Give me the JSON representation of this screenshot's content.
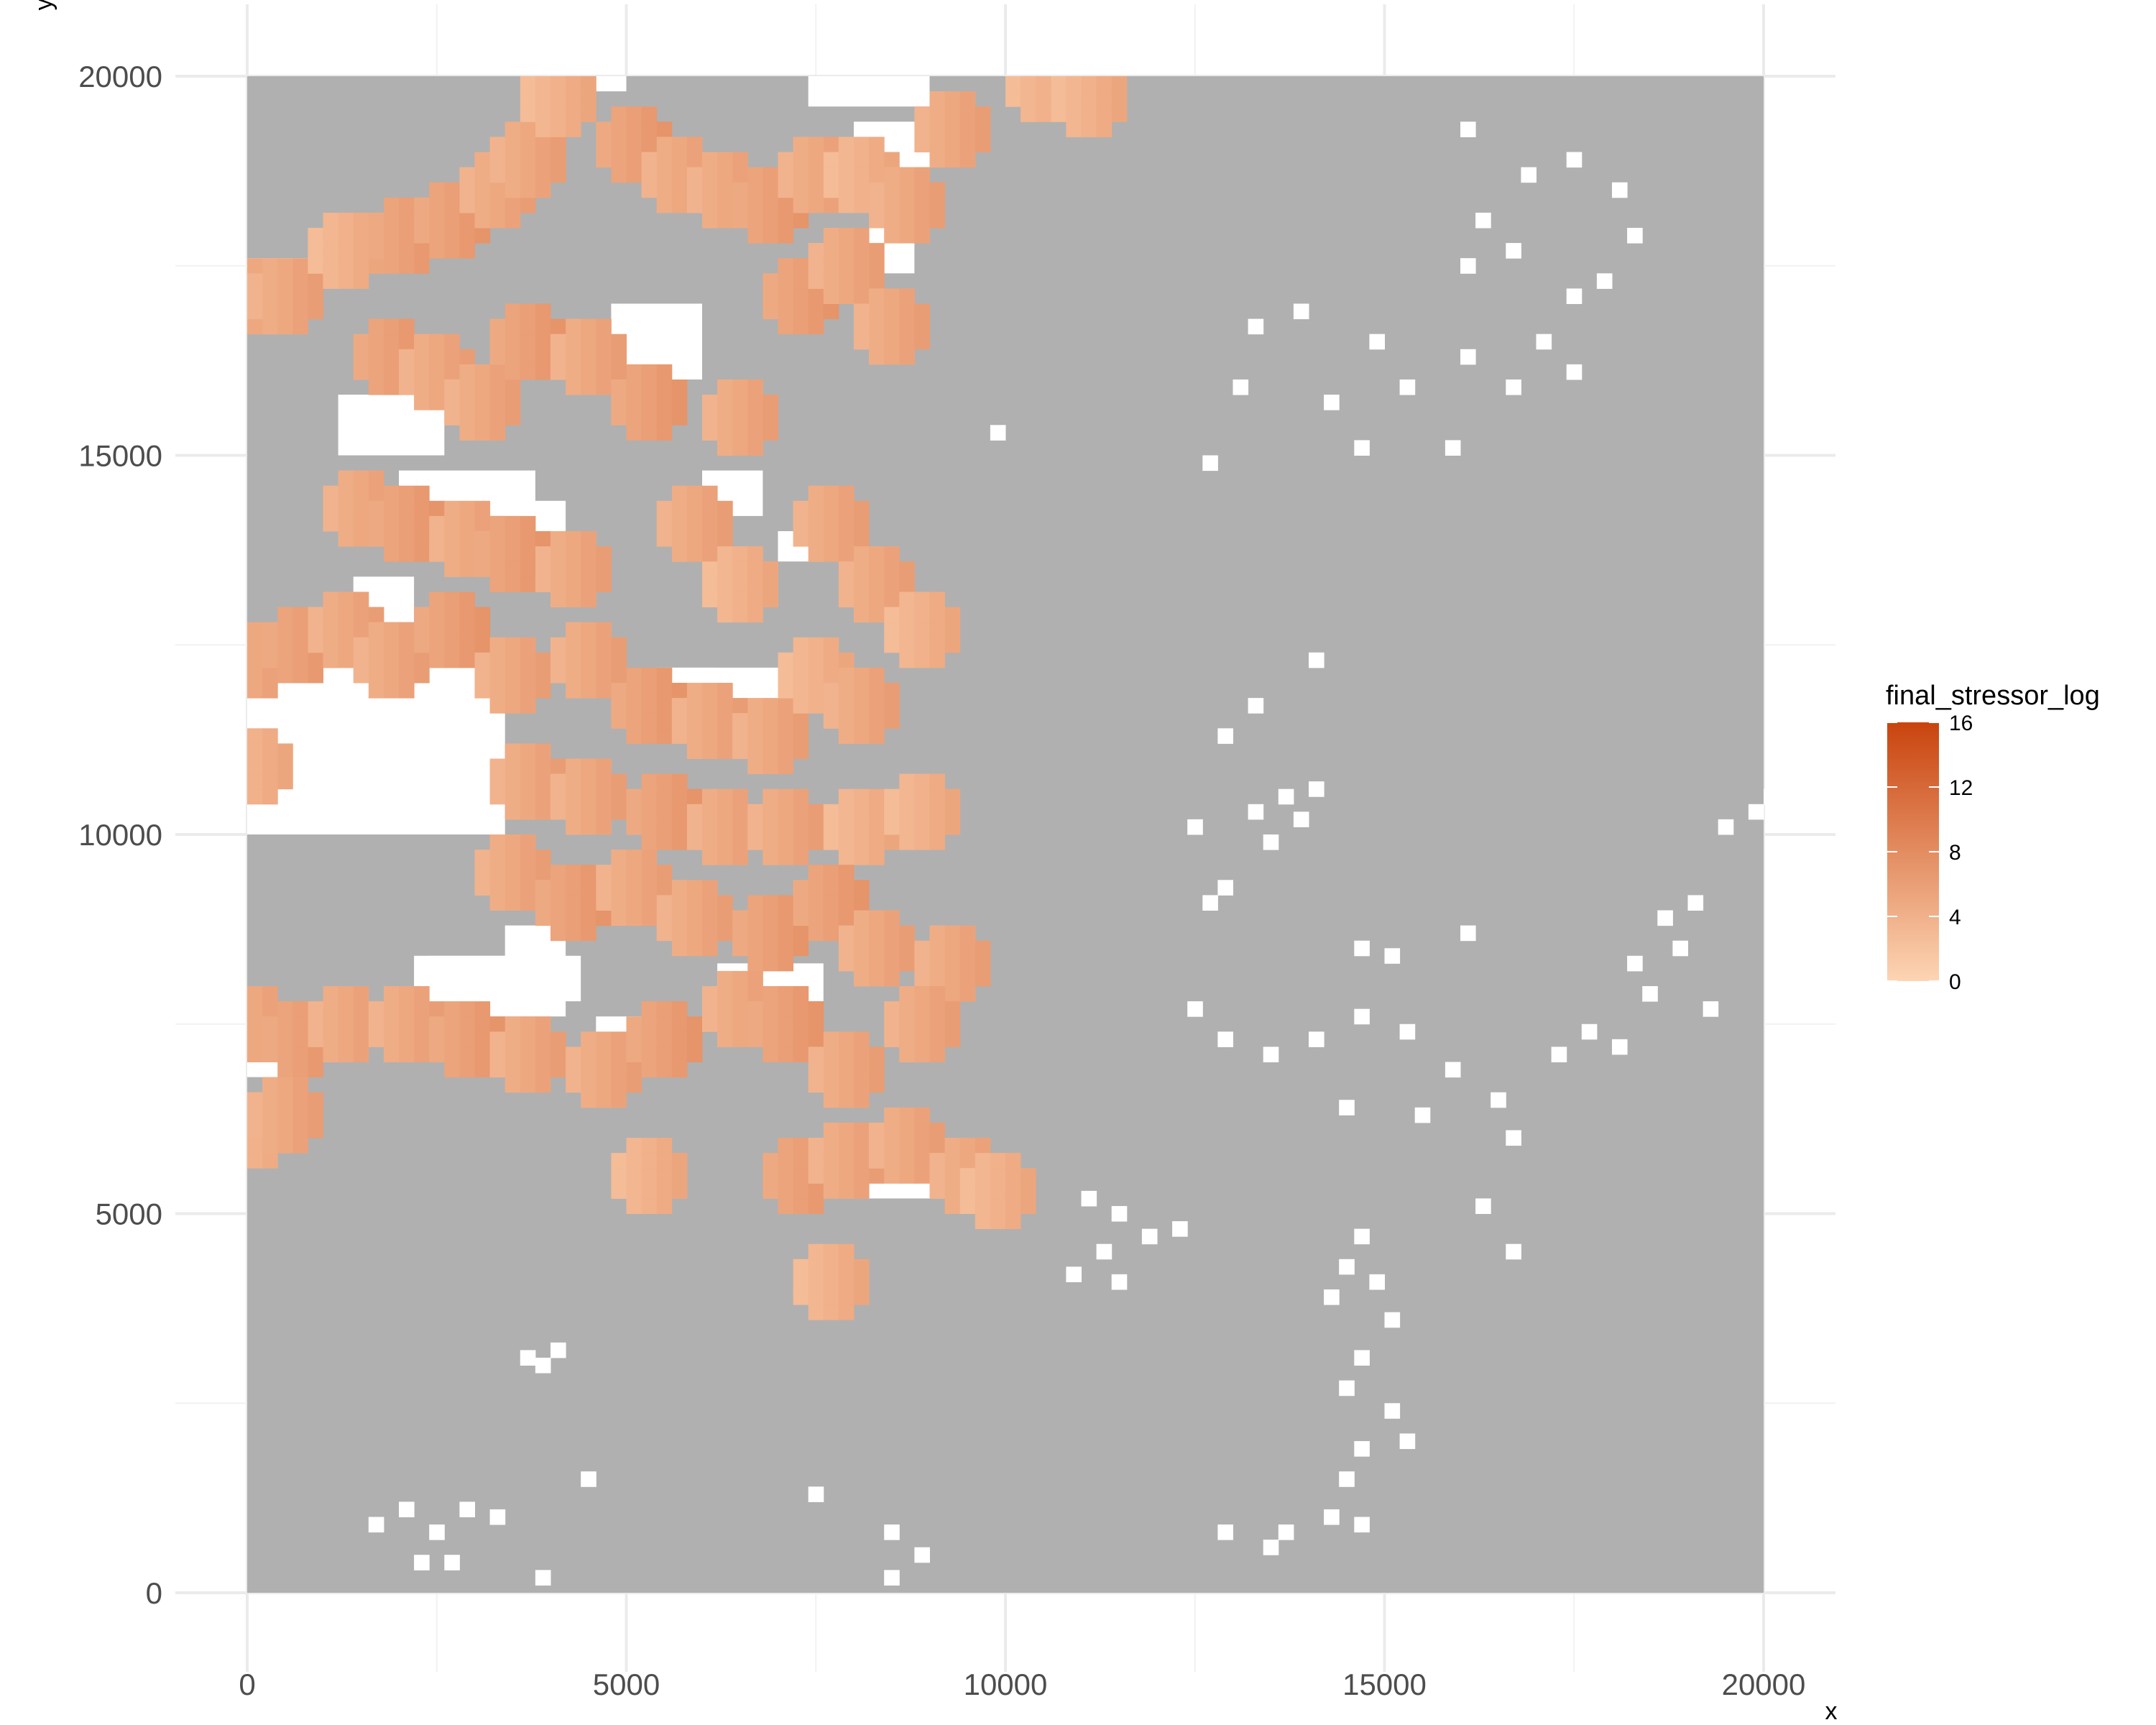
{
  "chart_data": {
    "type": "heatmap",
    "title": "",
    "xlabel": "x",
    "ylabel": "y",
    "xlim": [
      0,
      20000
    ],
    "ylim": [
      0,
      20000
    ],
    "x_ticks": [
      0,
      5000,
      10000,
      15000,
      20000
    ],
    "y_ticks": [
      0,
      5000,
      10000,
      15000,
      20000
    ],
    "x_tick_labels": [
      "0",
      "5000",
      "10000",
      "15000",
      "20000"
    ],
    "y_tick_labels": [
      "0",
      "5000",
      "10000",
      "15000",
      "20000"
    ],
    "grid": true,
    "cell_size": 200,
    "na_color": "#b0b0b0",
    "empty_color": "#ffffff",
    "legend": {
      "title": "final_stressor_log",
      "placement": "right",
      "range": [
        0,
        16
      ],
      "ticks": [
        0,
        4,
        8,
        12,
        16
      ],
      "tick_labels": [
        "0",
        "4",
        "8",
        "12",
        "16"
      ],
      "low_color": "#fdd5b4",
      "high_color": "#c9440e"
    },
    "stressor_region": {
      "description_level": "cells with final_stressor_log approx 3-8 cluster in the western half of the domain",
      "typical_value": 5
    },
    "stressor_cells": [
      [
        0,
        17000,
        5
      ],
      [
        400,
        17000,
        5
      ],
      [
        1200,
        17600,
        4
      ],
      [
        2000,
        17800,
        6
      ],
      [
        2600,
        18000,
        6
      ],
      [
        3200,
        18400,
        5
      ],
      [
        3600,
        18800,
        5
      ],
      [
        4000,
        19600,
        4
      ],
      [
        5000,
        19000,
        6
      ],
      [
        5600,
        18600,
        5
      ],
      [
        6200,
        18400,
        5
      ],
      [
        6800,
        18200,
        6
      ],
      [
        7400,
        18600,
        5
      ],
      [
        8000,
        18600,
        4
      ],
      [
        8600,
        18200,
        5
      ],
      [
        9200,
        19200,
        5
      ],
      [
        10400,
        19800,
        4
      ],
      [
        11000,
        19600,
        4
      ],
      [
        1800,
        16200,
        6
      ],
      [
        2400,
        16000,
        5
      ],
      [
        3000,
        15600,
        5
      ],
      [
        3600,
        16400,
        6
      ],
      [
        4400,
        16200,
        5
      ],
      [
        5200,
        15600,
        6
      ],
      [
        6400,
        15400,
        5
      ],
      [
        7200,
        17000,
        6
      ],
      [
        7800,
        17400,
        5
      ],
      [
        8400,
        16600,
        5
      ],
      [
        1400,
        14200,
        5
      ],
      [
        2000,
        14000,
        6
      ],
      [
        2800,
        13800,
        5
      ],
      [
        3400,
        13600,
        6
      ],
      [
        4200,
        13400,
        5
      ],
      [
        5800,
        14000,
        5
      ],
      [
        6400,
        13200,
        4
      ],
      [
        7600,
        14000,
        5
      ],
      [
        8200,
        13200,
        5
      ],
      [
        8800,
        12600,
        4
      ],
      [
        0,
        12200,
        5
      ],
      [
        600,
        12400,
        6
      ],
      [
        1200,
        12600,
        5
      ],
      [
        1800,
        12200,
        5
      ],
      [
        2600,
        12600,
        6
      ],
      [
        3400,
        12000,
        5
      ],
      [
        4400,
        12200,
        5
      ],
      [
        5200,
        11600,
        6
      ],
      [
        6000,
        11400,
        5
      ],
      [
        6800,
        11200,
        5
      ],
      [
        7400,
        12000,
        4
      ],
      [
        8000,
        11600,
        5
      ],
      [
        0,
        10800,
        4
      ],
      [
        3600,
        10600,
        5
      ],
      [
        4400,
        10400,
        5
      ],
      [
        5400,
        10200,
        6
      ],
      [
        6200,
        10000,
        5
      ],
      [
        7000,
        10000,
        5
      ],
      [
        8000,
        10000,
        4
      ],
      [
        8800,
        10200,
        4
      ],
      [
        3400,
        9400,
        5
      ],
      [
        4200,
        9000,
        6
      ],
      [
        5000,
        9200,
        5
      ],
      [
        5800,
        8800,
        5
      ],
      [
        6800,
        8600,
        6
      ],
      [
        7600,
        9000,
        6
      ],
      [
        8200,
        8400,
        5
      ],
      [
        9200,
        8200,
        5
      ],
      [
        0,
        7400,
        5
      ],
      [
        600,
        7200,
        6
      ],
      [
        1200,
        7400,
        5
      ],
      [
        2000,
        7400,
        5
      ],
      [
        2800,
        7200,
        6
      ],
      [
        3600,
        7000,
        5
      ],
      [
        4600,
        6800,
        5
      ],
      [
        5400,
        7200,
        6
      ],
      [
        6400,
        7600,
        5
      ],
      [
        7000,
        7400,
        6
      ],
      [
        7800,
        6800,
        5
      ],
      [
        8800,
        7400,
        5
      ],
      [
        0,
        6000,
        4
      ],
      [
        400,
        6200,
        5
      ],
      [
        7200,
        5400,
        6
      ],
      [
        7800,
        5600,
        5
      ],
      [
        8600,
        5800,
        5
      ],
      [
        9400,
        5400,
        5
      ],
      [
        9800,
        5200,
        4
      ],
      [
        7600,
        4000,
        4
      ],
      [
        5200,
        5400,
        4
      ]
    ],
    "white_patches": [
      [
        4400,
        19800,
        600,
        200
      ],
      [
        7400,
        19600,
        1600,
        400
      ],
      [
        8000,
        18800,
        1000,
        600
      ],
      [
        8000,
        17400,
        800,
        600
      ],
      [
        4800,
        16000,
        1200,
        1000
      ],
      [
        0,
        17200,
        800,
        400
      ],
      [
        1200,
        15000,
        1400,
        800
      ],
      [
        2000,
        14200,
        1800,
        600
      ],
      [
        1400,
        12800,
        800,
        600
      ],
      [
        0,
        10000,
        3400,
        2200
      ],
      [
        0,
        11800,
        600,
        600
      ],
      [
        2400,
        11800,
        1200,
        400
      ],
      [
        5600,
        11400,
        1800,
        800
      ],
      [
        5400,
        11800,
        800,
        400
      ],
      [
        3400,
        8200,
        800,
        600
      ],
      [
        2200,
        7600,
        2000,
        800
      ],
      [
        4600,
        7000,
        1000,
        600
      ],
      [
        6200,
        7800,
        1400,
        500
      ],
      [
        7400,
        5200,
        1800,
        800
      ],
      [
        0,
        6800,
        600,
        600
      ],
      [
        2400,
        7800,
        2000,
        600
      ],
      [
        6000,
        14200,
        800,
        600
      ],
      [
        7000,
        13600,
        600,
        400
      ],
      [
        3600,
        14000,
        600,
        400
      ],
      [
        3200,
        13400,
        800,
        400
      ]
    ],
    "scattered_white_cells": [
      [
        3600,
        3000
      ],
      [
        3800,
        2900
      ],
      [
        4000,
        3100
      ],
      [
        1600,
        800
      ],
      [
        2000,
        1000
      ],
      [
        2400,
        700
      ],
      [
        2800,
        1000
      ],
      [
        3200,
        900
      ],
      [
        2200,
        300
      ],
      [
        2600,
        300
      ],
      [
        4400,
        1400
      ],
      [
        7400,
        1200
      ],
      [
        8400,
        700
      ],
      [
        8800,
        400
      ],
      [
        3800,
        100
      ],
      [
        8400,
        100
      ],
      [
        12800,
        700
      ],
      [
        13400,
        500
      ],
      [
        13600,
        700
      ],
      [
        14200,
        900
      ],
      [
        14600,
        800
      ],
      [
        14400,
        1400
      ],
      [
        14600,
        1800
      ],
      [
        15200,
        1900
      ],
      [
        15000,
        2300
      ],
      [
        14400,
        2600
      ],
      [
        14600,
        3000
      ],
      [
        14200,
        3800
      ],
      [
        14400,
        4200
      ],
      [
        14600,
        4600
      ],
      [
        15000,
        3500
      ],
      [
        14800,
        4000
      ],
      [
        11000,
        5100
      ],
      [
        11400,
        4900
      ],
      [
        11800,
        4600
      ],
      [
        12200,
        4700
      ],
      [
        11200,
        4400
      ],
      [
        10800,
        4100
      ],
      [
        11400,
        4000
      ],
      [
        12400,
        10000
      ],
      [
        12600,
        9000
      ],
      [
        12800,
        9200
      ],
      [
        13200,
        10200
      ],
      [
        13600,
        10400
      ],
      [
        13800,
        10100
      ],
      [
        14000,
        10500
      ],
      [
        13400,
        9800
      ],
      [
        12400,
        7600
      ],
      [
        12800,
        7200
      ],
      [
        13400,
        7000
      ],
      [
        14000,
        7200
      ],
      [
        14600,
        7500
      ],
      [
        15200,
        7300
      ],
      [
        15800,
        6800
      ],
      [
        15400,
        6200
      ],
      [
        14400,
        6300
      ],
      [
        16400,
        6400
      ],
      [
        16600,
        5900
      ],
      [
        16200,
        5000
      ],
      [
        16600,
        4400
      ],
      [
        17200,
        7000
      ],
      [
        17600,
        7300
      ],
      [
        18000,
        7100
      ],
      [
        18400,
        7800
      ],
      [
        18800,
        8400
      ],
      [
        19000,
        9000
      ],
      [
        19200,
        7600
      ],
      [
        18600,
        8800
      ],
      [
        19400,
        10000
      ],
      [
        19800,
        10200
      ],
      [
        20000,
        10400
      ],
      [
        12600,
        14800
      ],
      [
        13000,
        15800
      ],
      [
        13200,
        16600
      ],
      [
        13800,
        16800
      ],
      [
        14200,
        15600
      ],
      [
        14600,
        15000
      ],
      [
        14800,
        16400
      ],
      [
        15200,
        15800
      ],
      [
        15800,
        15000
      ],
      [
        16000,
        16200
      ],
      [
        16600,
        15800
      ],
      [
        17000,
        16400
      ],
      [
        17400,
        16000
      ],
      [
        16000,
        19200
      ],
      [
        16800,
        18600
      ],
      [
        17400,
        18800
      ],
      [
        18000,
        18400
      ],
      [
        18200,
        17800
      ],
      [
        17800,
        17200
      ],
      [
        17400,
        17000
      ],
      [
        16600,
        17600
      ],
      [
        16200,
        18000
      ],
      [
        16000,
        17400
      ],
      [
        9800,
        15200
      ],
      [
        14000,
        12200
      ],
      [
        13200,
        11600
      ],
      [
        12800,
        11200
      ],
      [
        14600,
        8400
      ],
      [
        15000,
        8300
      ],
      [
        16000,
        8600
      ],
      [
        18200,
        8200
      ]
    ]
  }
}
